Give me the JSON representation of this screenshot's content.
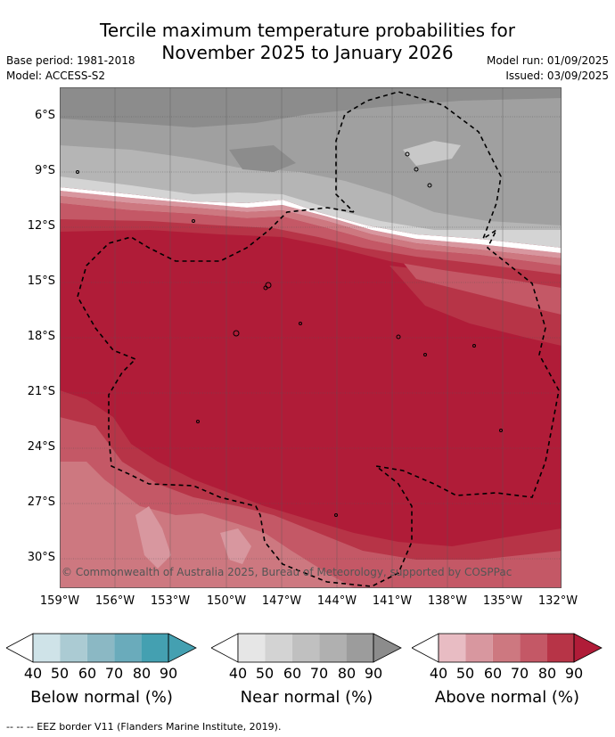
{
  "title_line1": "Tercile maximum temperature probabilities for",
  "title_line2": "November 2025 to January 2026",
  "base_period": "Base period: 1981-2018",
  "model": "Model: ACCESS-S2",
  "model_run": "Model run: 01/09/2025",
  "issued": "Issued: 03/09/2025",
  "copyright": "© Commonwealth of Australia 2025, Bureau of Meteorology, supported by COSPPac",
  "lat_labels": [
    "6°S",
    "9°S",
    "12°S",
    "15°S",
    "18°S",
    "21°S",
    "24°S",
    "27°S",
    "30°S"
  ],
  "lon_labels": [
    "159°W",
    "156°W",
    "153°W",
    "150°W",
    "147°W",
    "144°W",
    "141°W",
    "138°W",
    "135°W",
    "132°W"
  ],
  "legends": [
    {
      "caption": "Below normal (%)",
      "ticks": [
        "40",
        "50",
        "60",
        "70",
        "80",
        "90"
      ],
      "colors": [
        "#cfe3e8",
        "#abcbd3",
        "#8bb8c4",
        "#6aabbb",
        "#44a0b1"
      ]
    },
    {
      "caption": "Near normal (%)",
      "ticks": [
        "40",
        "50",
        "60",
        "70",
        "80",
        "90"
      ],
      "colors": [
        "#e6e6e6",
        "#d3d3d3",
        "#c0c0c0",
        "#b0b0b0",
        "#9c9c9c"
      ]
    },
    {
      "caption": "Above normal (%)",
      "ticks": [
        "40",
        "50",
        "60",
        "70",
        "80",
        "90"
      ],
      "colors": [
        "#e8bcc3",
        "#d8979f",
        "#cd7880",
        "#c45866",
        "#b73447"
      ]
    }
  ],
  "map_colors": {
    "above_90": "#b01c38",
    "above_80": "#b73447",
    "above_70": "#c45866",
    "above_60": "#cd7880",
    "above_50": "#d8979f",
    "near_80": "#8c8c8c",
    "near_70": "#a0a0a0",
    "near_60": "#b5b5b5",
    "near_50": "#d4d4d4"
  },
  "footer": "-- -- -- EEZ border V11 (Flanders Marine Institute, 2019)."
}
